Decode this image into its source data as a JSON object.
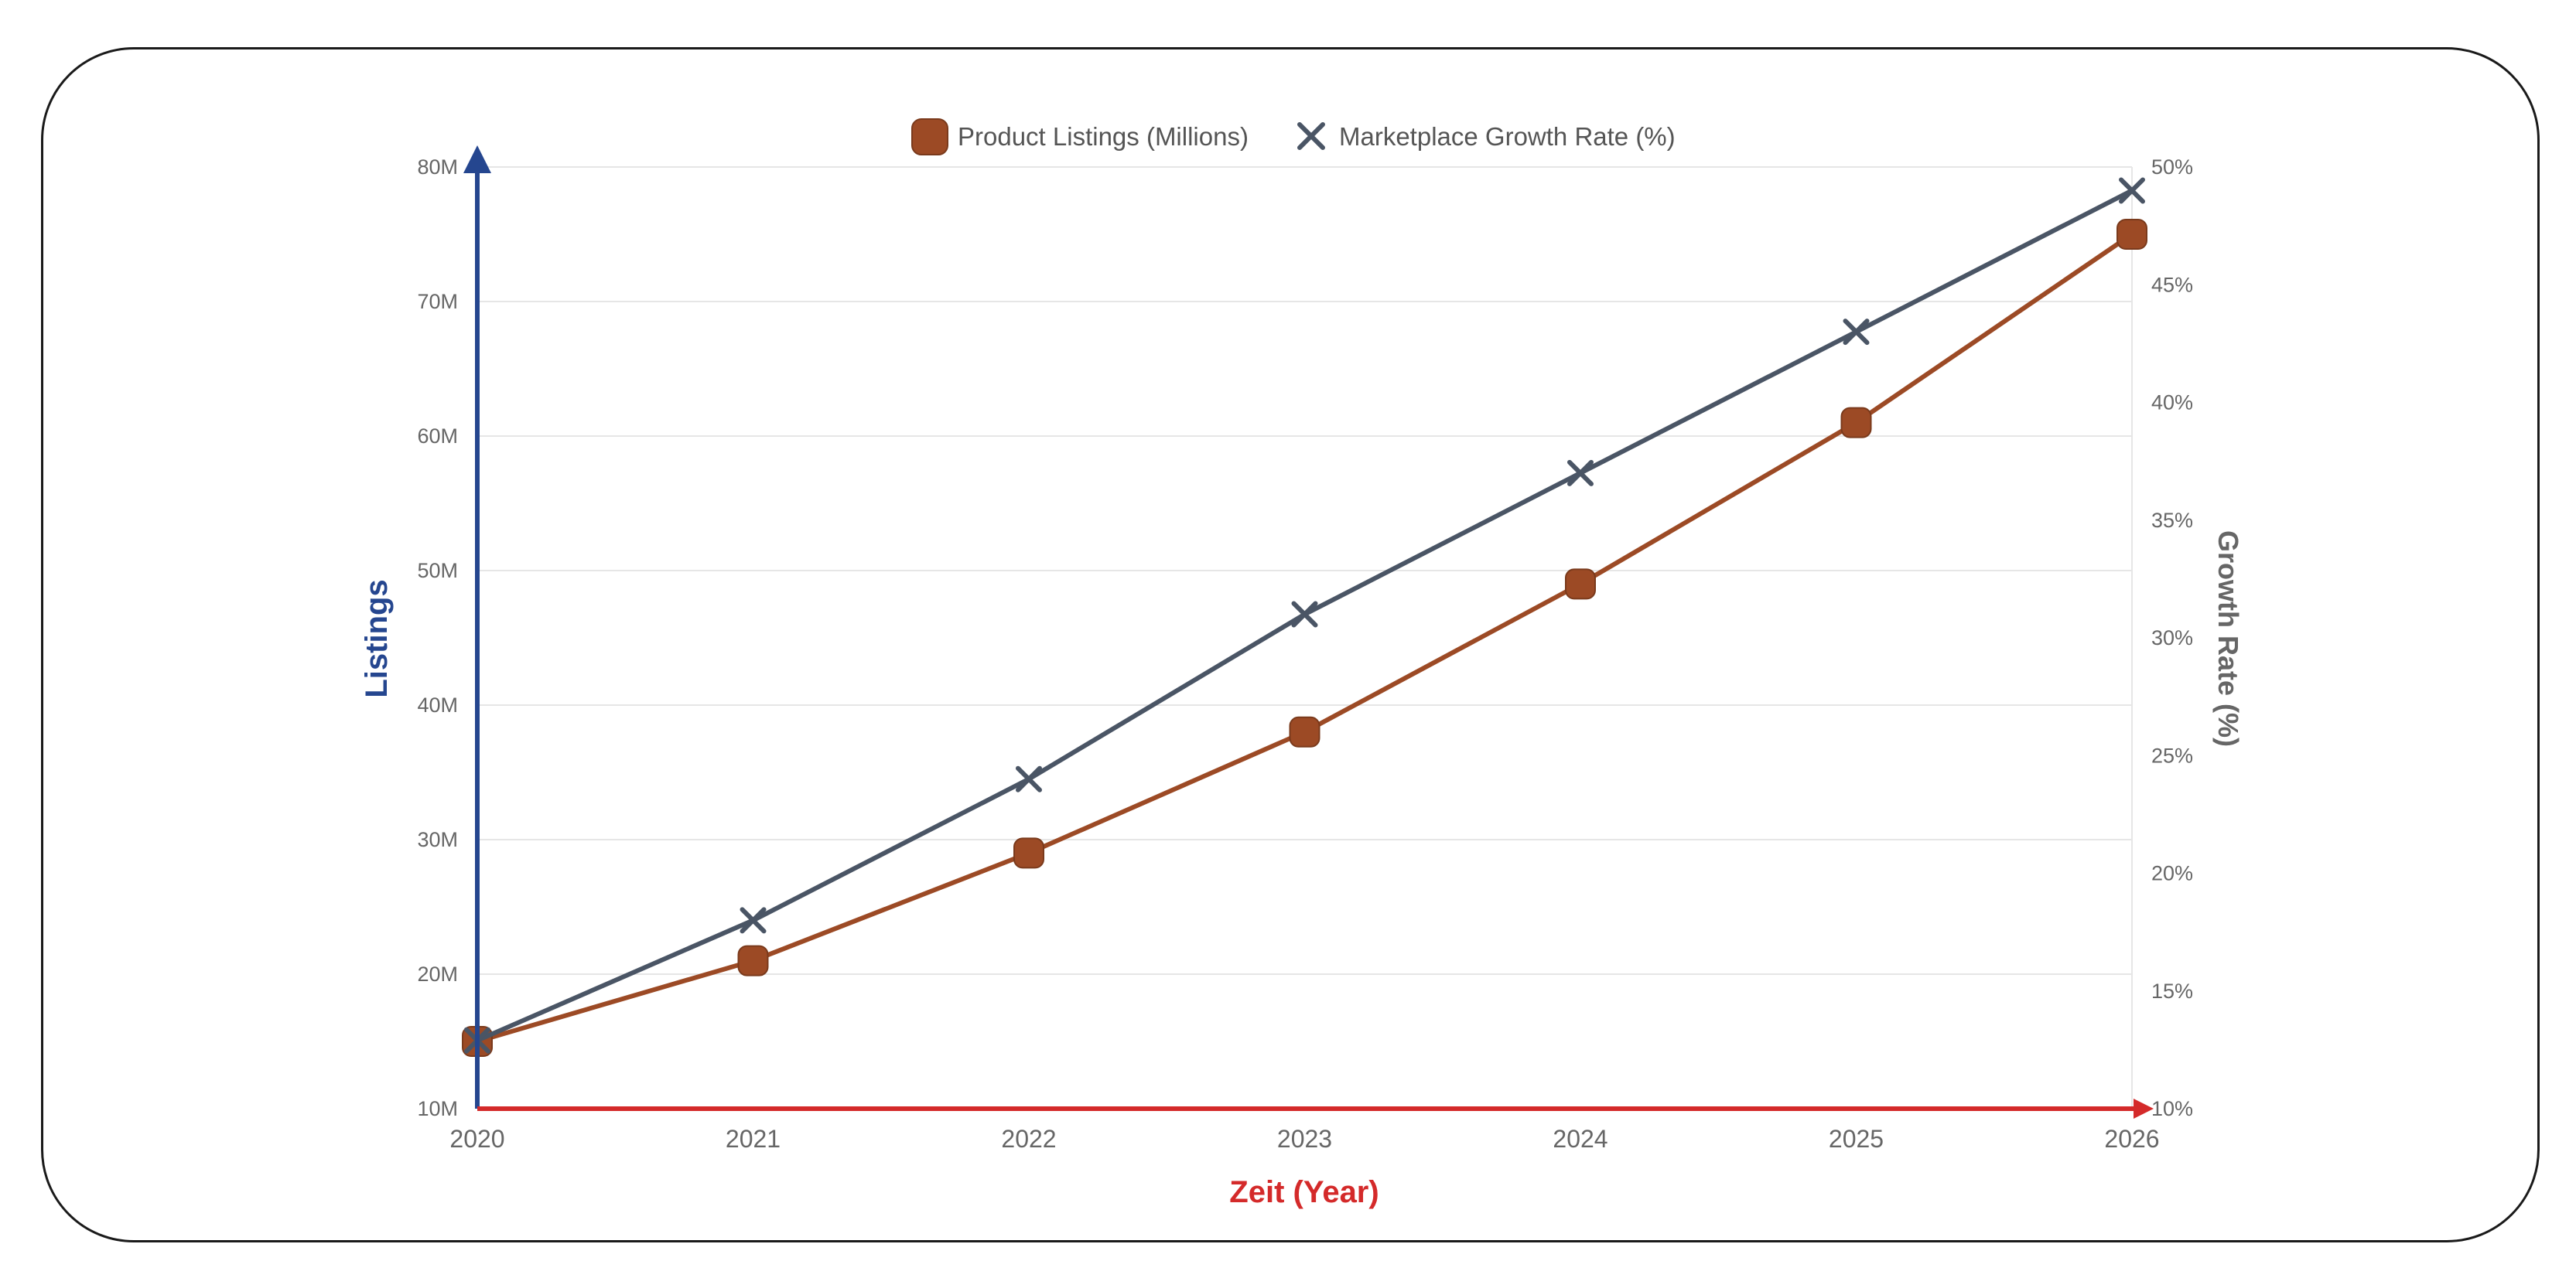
{
  "chart_data": {
    "type": "line",
    "x": [
      "2020",
      "2021",
      "2022",
      "2023",
      "2024",
      "2025",
      "2026"
    ],
    "series": [
      {
        "name": "Product Listings (Millions)",
        "axis": "left",
        "marker": "rounded-square",
        "color": "#9c4a25",
        "values": [
          15,
          21,
          29,
          38,
          49,
          61,
          75
        ]
      },
      {
        "name": "Marketplace Growth Rate (%)",
        "axis": "right",
        "marker": "cross",
        "color": "#4a5565",
        "values": [
          12.9,
          18,
          24,
          31,
          37,
          43,
          49
        ]
      }
    ],
    "xlabel": "Zeit (Year)",
    "ylabel": "Listings",
    "y2label": "Growth Rate (%)",
    "ylim": [
      10,
      80
    ],
    "y2lim": [
      10,
      50
    ],
    "yticks": [
      "10M",
      "20M",
      "30M",
      "40M",
      "50M",
      "60M",
      "70M",
      "80M"
    ],
    "y2ticks": [
      "10%",
      "15%",
      "20%",
      "25%",
      "30%",
      "35%",
      "40%",
      "45%",
      "50%"
    ],
    "grid": true,
    "legend_position": "top-center",
    "colors": {
      "x_axis": "#d42a2a",
      "y_axis": "#25468f",
      "y2_title": "#666666",
      "grid": "#e6e6e6"
    }
  }
}
